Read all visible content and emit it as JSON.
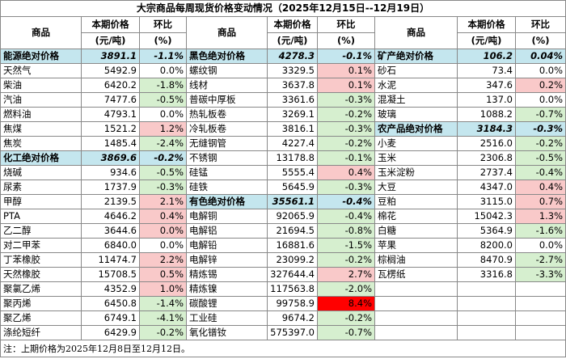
{
  "title": "大宗商品每周现货价格变动情况（2025年12月15日--12月19日）",
  "headers": {
    "name": "商品",
    "price": "本期价格",
    "price_unit": "(元/吨)",
    "change": "环比",
    "change_unit": "(%)"
  },
  "colors": {
    "group": "#c4e6ee",
    "up": "#f9c9c9",
    "down": "#d6efcf",
    "surge": "#ff0000"
  },
  "rows": [
    [
      {
        "name": "能源绝对价格",
        "price": "3891.1",
        "change": "-1.1%",
        "kind": "group"
      },
      {
        "name": "黑色绝对价格",
        "price": "4278.3",
        "change": "-0.1%",
        "kind": "group"
      },
      {
        "name": "矿产绝对价格",
        "price": "106.2",
        "change": "0.04%",
        "kind": "group"
      }
    ],
    [
      {
        "name": "天然气",
        "price": "5492.9",
        "change": "0.0%"
      },
      {
        "name": "螺纹钢",
        "price": "3329.5",
        "change": "0.1%",
        "kind": "up"
      },
      {
        "name": "砂石",
        "price": "73.4",
        "change": "0.0%"
      }
    ],
    [
      {
        "name": "柴油",
        "price": "6420.2",
        "change": "-1.8%",
        "kind": "down"
      },
      {
        "name": "线材",
        "price": "3637.8",
        "change": "0.1%",
        "kind": "up"
      },
      {
        "name": "水泥",
        "price": "347.6",
        "change": "0.2%",
        "kind": "up"
      }
    ],
    [
      {
        "name": "汽油",
        "price": "7477.6",
        "change": "-0.5%",
        "kind": "down"
      },
      {
        "name": "普碳中厚板",
        "price": "3361.6",
        "change": "-0.3%",
        "kind": "down"
      },
      {
        "name": "混凝土",
        "price": "137.0",
        "change": "0.0%"
      }
    ],
    [
      {
        "name": "燃料油",
        "price": "4793.1",
        "change": "0.0%"
      },
      {
        "name": "热轧板卷",
        "price": "3269.1",
        "change": "-0.2%",
        "kind": "down"
      },
      {
        "name": "玻璃",
        "price": "1088.2",
        "change": "-0.7%",
        "kind": "down"
      }
    ],
    [
      {
        "name": "焦煤",
        "price": "1521.2",
        "change": "1.2%",
        "kind": "up"
      },
      {
        "name": "冷轧板卷",
        "price": "3816.1",
        "change": "-0.3%",
        "kind": "down"
      },
      {
        "name": "农产品绝对价格",
        "price": "3184.3",
        "change": "-0.3%",
        "kind": "group"
      }
    ],
    [
      {
        "name": "焦炭",
        "price": "1485.4",
        "change": "-2.4%",
        "kind": "down"
      },
      {
        "name": "无缝钢管",
        "price": "4227.4",
        "change": "-0.2%",
        "kind": "down"
      },
      {
        "name": "小麦",
        "price": "2516.0",
        "change": "-0.2%",
        "kind": "down"
      }
    ],
    [
      {
        "name": "化工绝对价格",
        "price": "3869.6",
        "change": "-0.2%",
        "kind": "group"
      },
      {
        "name": "不锈钢",
        "price": "13178.8",
        "change": "-0.1%",
        "kind": "down"
      },
      {
        "name": "玉米",
        "price": "2306.8",
        "change": "-0.5%",
        "kind": "down"
      }
    ],
    [
      {
        "name": "烧碱",
        "price": "934.6",
        "change": "-0.5%",
        "kind": "down"
      },
      {
        "name": "硅锰",
        "price": "5555.4",
        "change": "0.4%",
        "kind": "up"
      },
      {
        "name": "玉米淀粉",
        "price": "2737.4",
        "change": "-0.4%",
        "kind": "down"
      }
    ],
    [
      {
        "name": "尿素",
        "price": "1737.9",
        "change": "-0.3%",
        "kind": "down"
      },
      {
        "name": "硅铁",
        "price": "5645.9",
        "change": "-0.3%",
        "kind": "down"
      },
      {
        "name": "大豆",
        "price": "4347.0",
        "change": "0.4%",
        "kind": "up"
      }
    ],
    [
      {
        "name": "甲醇",
        "price": "2139.5",
        "change": "2.1%",
        "kind": "up"
      },
      {
        "name": "有色绝对价格",
        "price": "35561.1",
        "change": "-0.4%",
        "kind": "group"
      },
      {
        "name": "豆粕",
        "price": "3115.0",
        "change": "0.7%",
        "kind": "up"
      }
    ],
    [
      {
        "name": "PTA",
        "price": "4646.2",
        "change": "0.4%",
        "kind": "up"
      },
      {
        "name": "电解铜",
        "price": "92065.9",
        "change": "-0.4%",
        "kind": "down"
      },
      {
        "name": "棉花",
        "price": "15042.3",
        "change": "1.3%",
        "kind": "up"
      }
    ],
    [
      {
        "name": "乙二醇",
        "price": "3644.6",
        "change": "0.0%",
        "kind": "up"
      },
      {
        "name": "电解铝",
        "price": "21694.5",
        "change": "-0.8%",
        "kind": "down"
      },
      {
        "name": "白糖",
        "price": "5364.9",
        "change": "-1.6%",
        "kind": "down"
      }
    ],
    [
      {
        "name": "对二甲苯",
        "price": "6840.0",
        "change": "0.0%"
      },
      {
        "name": "电解铅",
        "price": "16881.6",
        "change": "-1.5%",
        "kind": "down"
      },
      {
        "name": "苹果",
        "price": "8200.0",
        "change": "0.0%"
      }
    ],
    [
      {
        "name": "丁苯橡胶",
        "price": "11474.7",
        "change": "2.2%",
        "kind": "up"
      },
      {
        "name": "电解锌",
        "price": "23099.2",
        "change": "-0.2%",
        "kind": "down"
      },
      {
        "name": "棕榈油",
        "price": "8470.9",
        "change": "-2.7%",
        "kind": "down"
      }
    ],
    [
      {
        "name": "天然橡胶",
        "price": "15708.5",
        "change": "0.5%",
        "kind": "up"
      },
      {
        "name": "精炼锡",
        "price": "327644.4",
        "change": "2.7%",
        "kind": "up"
      },
      {
        "name": "瓦楞纸",
        "price": "3316.8",
        "change": "-3.3%",
        "kind": "down"
      }
    ],
    [
      {
        "name": "聚氯乙烯",
        "price": "4352.9",
        "change": "1.0%",
        "kind": "up"
      },
      {
        "name": "精炼镍",
        "price": "117563.8",
        "change": "-2.0%",
        "kind": "down"
      },
      null
    ],
    [
      {
        "name": "聚丙烯",
        "price": "6450.8",
        "change": "-1.4%",
        "kind": "down"
      },
      {
        "name": "碳酸锂",
        "price": "99758.9",
        "change": "8.4%",
        "kind": "surge"
      },
      null
    ],
    [
      {
        "name": "聚乙烯",
        "price": "6749.1",
        "change": "-4.1%",
        "kind": "down"
      },
      {
        "name": "工业硅",
        "price": "9674.2",
        "change": "-0.2%",
        "kind": "down"
      },
      null
    ],
    [
      {
        "name": "涤纶短纤",
        "price": "6429.9",
        "change": "-0.2%",
        "kind": "down"
      },
      {
        "name": "氧化镨钕",
        "price": "575397.0",
        "change": "-0.7%",
        "kind": "down"
      },
      null
    ]
  ],
  "note": "注：上期价格为2025年12月8日至12月12日。"
}
